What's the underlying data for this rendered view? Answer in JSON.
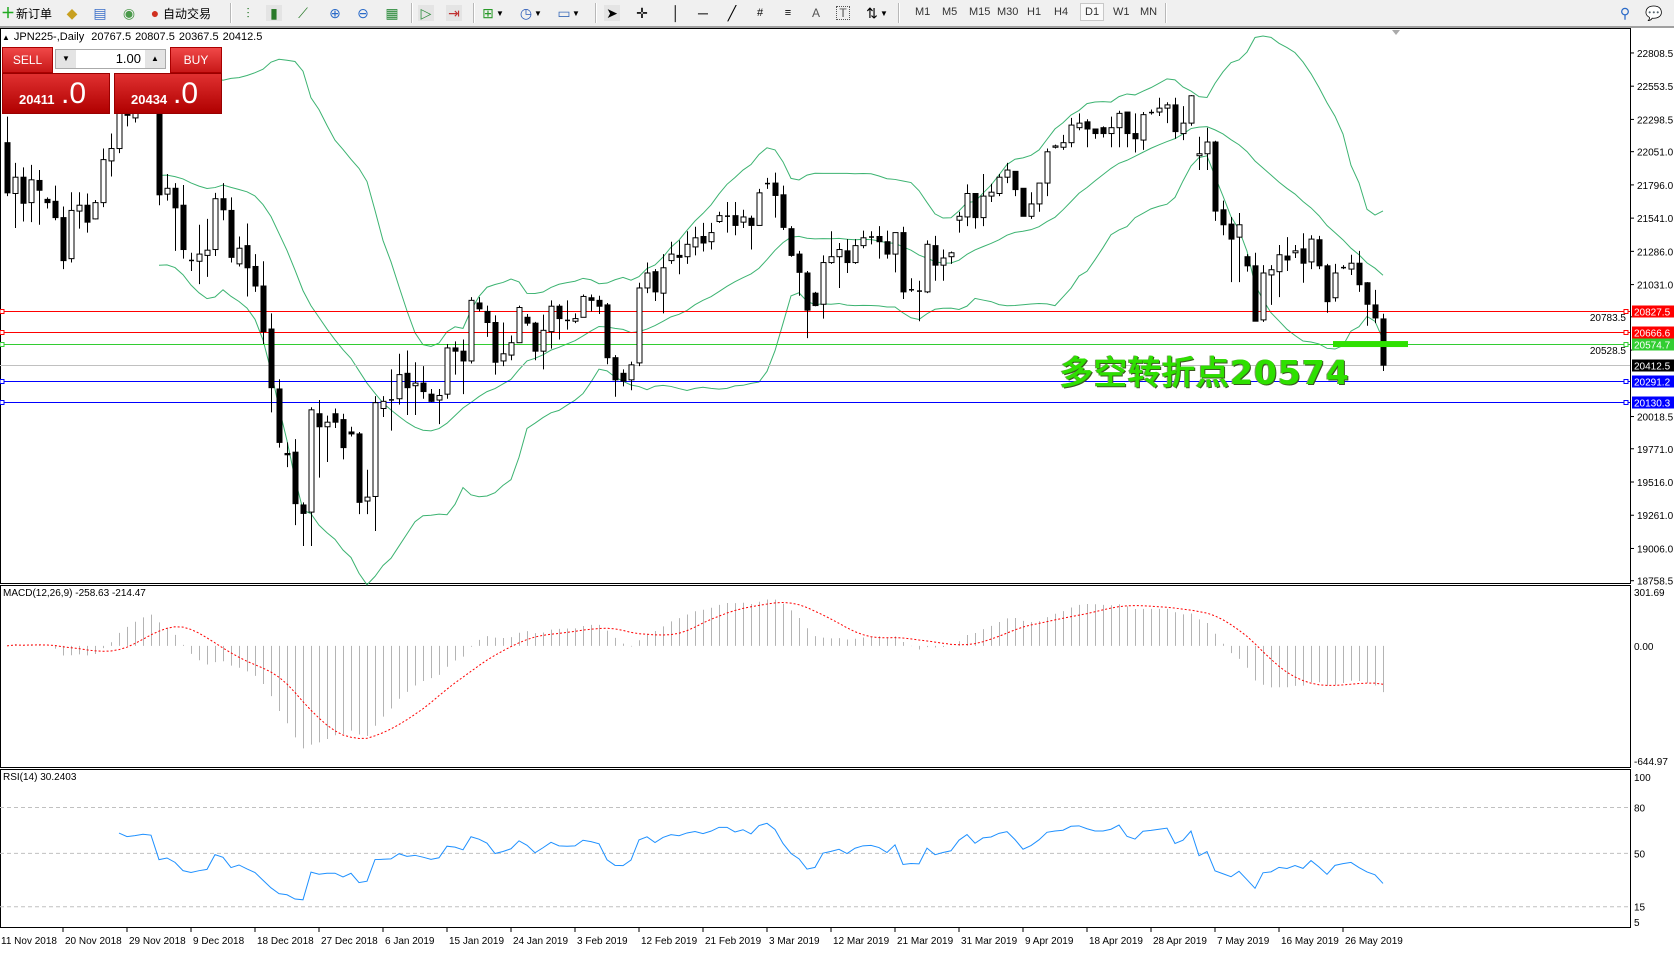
{
  "toolbar": {
    "new_order_label": "新订单",
    "auto_trading_label": "自动交易",
    "timeframes": [
      "M1",
      "M5",
      "M15",
      "M30",
      "H1",
      "H4",
      "D1",
      "W1",
      "MN"
    ],
    "active_timeframe": "D1",
    "icons": [
      "new-order-icon",
      "market-watch-icon",
      "data-window-icon",
      "signals-icon",
      "auto-trading-icon",
      "bar-chart-icon",
      "candlestick-icon",
      "line-chart-icon",
      "zoom-in-icon",
      "zoom-out-icon",
      "tile-windows-icon",
      "autoscroll-icon",
      "chart-shift-icon",
      "new-chart-icon",
      "periods-icon",
      "templates-icon",
      "cursor-icon",
      "crosshair-icon",
      "vertical-line-icon",
      "horizontal-line-icon",
      "trendline-icon",
      "fibonacci-icon",
      "channel-icon",
      "text-icon",
      "text-label-icon",
      "arrows-icon",
      "search-icon",
      "chat-icon"
    ]
  },
  "chart_header": {
    "symbol": "JPN225-,Daily",
    "open": "20767.5",
    "high": "20807.5",
    "low": "20367.5",
    "close": "20412.5"
  },
  "one_click": {
    "sell_label": "SELL",
    "buy_label": "BUY",
    "lot": "1.00",
    "sell_main": "20411",
    "sell_frac": ".0",
    "buy_main": "20434",
    "buy_frac": ".0",
    "color": "#d42020"
  },
  "annotation": {
    "text": "多空转折点20574",
    "color": "#2ee000",
    "level": 20574.7
  },
  "chart_data": [
    {
      "type": "candlestick",
      "symbol": "JPN225-",
      "timeframe": "Daily",
      "ylim": [
        18741,
        23000
      ],
      "price_ticks": [
        "22808.5",
        "22553.5",
        "22298.5",
        "22051.0",
        "21796.0",
        "21541.0",
        "21286.0",
        "21031.0",
        "20783.5",
        "20528.5",
        "20018.5",
        "19771.0",
        "19516.0",
        "19261.0",
        "19006.0",
        "18758.5"
      ],
      "date_labels": [
        "11 Nov 2018",
        "20 Nov 2018",
        "29 Nov 2018",
        "9 Dec 2018",
        "18 Dec 2018",
        "27 Dec 2018",
        "6 Jan 2019",
        "15 Jan 2019",
        "24 Jan 2019",
        "3 Feb 2019",
        "12 Feb 2019",
        "21 Feb 2019",
        "3 Mar 2019",
        "12 Mar 2019",
        "21 Mar 2019",
        "31 Mar 2019",
        "9 Apr 2019",
        "18 Apr 2019",
        "28 Apr 2019",
        "7 May 2019",
        "16 May 2019",
        "26 May 2019"
      ],
      "horizontal_lines": [
        {
          "price": 20827.5,
          "label": "20827.5",
          "color": "#ff0000"
        },
        {
          "price": 20666.6,
          "label": "20666.6",
          "color": "#ff0000"
        },
        {
          "price": 20574.7,
          "label": "20574.7",
          "color": "#32cd32"
        },
        {
          "price": 20291.2,
          "label": "20291.2",
          "color": "#0000ff"
        },
        {
          "price": 20130.3,
          "label": "20130.3",
          "color": "#0000ff"
        }
      ],
      "bid_line": {
        "price": 20412.5,
        "label": "20412.5",
        "color": "#c0c0c0"
      },
      "bands_color": "#3cb371",
      "up_color": "#ffffff",
      "down_color": "#000000",
      "ohlc": [
        [
          22120,
          22320,
          21710,
          21735
        ],
        [
          21730,
          21965,
          21465,
          21855
        ],
        [
          21855,
          21930,
          21515,
          21655
        ],
        [
          21660,
          21950,
          21510,
          21835
        ],
        [
          21830,
          21910,
          21490,
          21755
        ],
        [
          21685,
          21700,
          21615,
          21660
        ],
        [
          21670,
          21790,
          21525,
          21545
        ],
        [
          21545,
          21630,
          21150,
          21215
        ],
        [
          21230,
          21740,
          21200,
          21600
        ],
        [
          21595,
          21740,
          21460,
          21640
        ],
        [
          21640,
          21730,
          21430,
          21510
        ],
        [
          21535,
          21680,
          21530,
          21660
        ],
        [
          21660,
          22075,
          21625,
          21990
        ],
        [
          21980,
          22190,
          21860,
          22075
        ],
        [
          22075,
          22510,
          22040,
          22420
        ],
        [
          22370,
          22460,
          22245,
          22330
        ],
        [
          22310,
          22440,
          22275,
          22370
        ],
        [
          22370,
          22480,
          22350,
          22420
        ],
        [
          22420,
          22460,
          22370,
          22400
        ],
        [
          22400,
          22460,
          21640,
          21720
        ],
        [
          21725,
          21880,
          21675,
          21770
        ],
        [
          21770,
          21810,
          21290,
          21620
        ],
        [
          21640,
          21795,
          21230,
          21300
        ],
        [
          21220,
          21275,
          21135,
          21220
        ],
        [
          21210,
          21490,
          21035,
          21265
        ],
        [
          21255,
          21535,
          21090,
          21295
        ],
        [
          21300,
          21735,
          21250,
          21690
        ],
        [
          21690,
          21810,
          21525,
          21605
        ],
        [
          21600,
          21700,
          21200,
          21240
        ],
        [
          21190,
          21400,
          21170,
          21310
        ],
        [
          21330,
          21500,
          20940,
          21160
        ],
        [
          21170,
          21265,
          20975,
          21020
        ],
        [
          21020,
          21210,
          20575,
          20670
        ],
        [
          20690,
          20810,
          20050,
          20240
        ],
        [
          20230,
          20305,
          19780,
          19820
        ],
        [
          19735,
          19820,
          19630,
          19725
        ],
        [
          19745,
          19845,
          19185,
          19350
        ],
        [
          19340,
          19360,
          19025,
          19275
        ],
        [
          19285,
          20090,
          19025,
          20070
        ],
        [
          20040,
          20145,
          19550,
          19940
        ],
        [
          19940,
          20025,
          19670,
          19975
        ],
        [
          20040,
          20080,
          19930,
          19975
        ],
        [
          19995,
          20040,
          19690,
          19780
        ],
        [
          19900,
          19940,
          19865,
          19885
        ],
        [
          19885,
          19900,
          19270,
          19360
        ],
        [
          19370,
          19610,
          19270,
          19400
        ],
        [
          19405,
          20175,
          19140,
          20125
        ],
        [
          20080,
          20175,
          20015,
          20135
        ],
        [
          20145,
          20380,
          19910,
          20150
        ],
        [
          20155,
          20500,
          20110,
          20340
        ],
        [
          20350,
          20525,
          20030,
          20240
        ],
        [
          20255,
          20435,
          20030,
          20275
        ],
        [
          20275,
          20405,
          20155,
          20210
        ],
        [
          20190,
          20230,
          20130,
          20135
        ],
        [
          20145,
          20230,
          19960,
          20180
        ],
        [
          20190,
          20575,
          20155,
          20545
        ],
        [
          20545,
          20595,
          20340,
          20520
        ],
        [
          20520,
          20610,
          20190,
          20445
        ],
        [
          20445,
          20935,
          20425,
          20910
        ],
        [
          20890,
          20935,
          20825,
          20845
        ],
        [
          20825,
          20870,
          20630,
          20740
        ],
        [
          20740,
          20795,
          20340,
          20435
        ],
        [
          20445,
          20740,
          20405,
          20500
        ],
        [
          20490,
          20640,
          20450,
          20585
        ],
        [
          20585,
          20870,
          20585,
          20855
        ],
        [
          20780,
          20805,
          20715,
          20735
        ],
        [
          20735,
          20745,
          20450,
          20520
        ],
        [
          20520,
          20800,
          20380,
          20680
        ],
        [
          20670,
          20910,
          20540,
          20865
        ],
        [
          20865,
          20880,
          20610,
          20770
        ],
        [
          20760,
          20910,
          20685,
          20760
        ],
        [
          20750,
          20810,
          20735,
          20770
        ],
        [
          20780,
          20955,
          20780,
          20940
        ],
        [
          20930,
          20955,
          20825,
          20910
        ],
        [
          20910,
          20945,
          20805,
          20865
        ],
        [
          20875,
          20890,
          20420,
          20470
        ],
        [
          20470,
          20490,
          20170,
          20300
        ],
        [
          20350,
          20380,
          20250,
          20290
        ],
        [
          20300,
          20440,
          20220,
          20415
        ],
        [
          20430,
          21045,
          20405,
          21005
        ],
        [
          21005,
          21200,
          20965,
          21120
        ],
        [
          21130,
          21150,
          20905,
          20975
        ],
        [
          20965,
          21265,
          20810,
          21160
        ],
        [
          21215,
          21360,
          21190,
          21265
        ],
        [
          21255,
          21370,
          21110,
          21240
        ],
        [
          21245,
          21440,
          21190,
          21340
        ],
        [
          21320,
          21475,
          21255,
          21390
        ],
        [
          21400,
          21505,
          21285,
          21350
        ],
        [
          21360,
          21505,
          21300,
          21430
        ],
        [
          21515,
          21590,
          21505,
          21560
        ],
        [
          21560,
          21665,
          21430,
          21560
        ],
        [
          21560,
          21665,
          21410,
          21485
        ],
        [
          21510,
          21605,
          21465,
          21550
        ],
        [
          21540,
          21560,
          21300,
          21485
        ],
        [
          21485,
          21765,
          21485,
          21735
        ],
        [
          21810,
          21850,
          21765,
          21810
        ],
        [
          21810,
          21890,
          21545,
          21715
        ],
        [
          21720,
          21790,
          21450,
          21470
        ],
        [
          21460,
          21480,
          21245,
          21255
        ],
        [
          21265,
          21290,
          20945,
          21125
        ],
        [
          21120,
          21135,
          20620,
          20835
        ],
        [
          20965,
          20975,
          20865,
          20870
        ],
        [
          20880,
          21255,
          20770,
          21200
        ],
        [
          21200,
          21440,
          21190,
          21245
        ],
        [
          21245,
          21350,
          21005,
          21300
        ],
        [
          21290,
          21380,
          21120,
          21200
        ],
        [
          21200,
          21380,
          21190,
          21330
        ],
        [
          21330,
          21445,
          21310,
          21390
        ],
        [
          21400,
          21440,
          21340,
          21400
        ],
        [
          21400,
          21480,
          21230,
          21360
        ],
        [
          21360,
          21445,
          21230,
          21265
        ],
        [
          21265,
          21430,
          21125,
          21430
        ],
        [
          21430,
          21475,
          20920,
          20975
        ],
        [
          20995,
          21080,
          20975,
          20995
        ],
        [
          20985,
          21060,
          20750,
          20985
        ],
        [
          20975,
          21370,
          20965,
          21340
        ],
        [
          21330,
          21405,
          21060,
          21180
        ],
        [
          21180,
          21300,
          21060,
          21235
        ],
        [
          21245,
          21285,
          21190,
          21275
        ],
        [
          21525,
          21590,
          21430,
          21555
        ],
        [
          21550,
          21800,
          21480,
          21730
        ],
        [
          21730,
          21730,
          21460,
          21545
        ],
        [
          21545,
          21880,
          21480,
          21710
        ],
        [
          21710,
          21805,
          21665,
          21740
        ],
        [
          21730,
          21880,
          21710,
          21855
        ],
        [
          21855,
          21965,
          21810,
          21910
        ],
        [
          21900,
          21900,
          21710,
          21760
        ],
        [
          21770,
          21770,
          21555,
          21555
        ],
        [
          21555,
          21740,
          21535,
          21650
        ],
        [
          21650,
          21810,
          21590,
          21810
        ],
        [
          21810,
          22075,
          21710,
          22050
        ],
        [
          22085,
          22105,
          22075,
          22095
        ],
        [
          22085,
          22180,
          22065,
          22120
        ],
        [
          22120,
          22310,
          22085,
          22255
        ],
        [
          22235,
          22345,
          22215,
          22270
        ],
        [
          22280,
          22300,
          22085,
          22225
        ],
        [
          22225,
          22225,
          22150,
          22190
        ],
        [
          22235,
          22245,
          22160,
          22190
        ],
        [
          22190,
          22320,
          22085,
          22235
        ],
        [
          22235,
          22365,
          22085,
          22345
        ],
        [
          22355,
          22355,
          22085,
          22190
        ],
        [
          22190,
          22345,
          22045,
          22150
        ],
        [
          22140,
          22355,
          22065,
          22335
        ],
        [
          22355,
          22375,
          22335,
          22355
        ],
        [
          22355,
          22465,
          22325,
          22385
        ],
        [
          22385,
          22430,
          22270,
          22410
        ],
        [
          22410,
          22465,
          22150,
          22205
        ],
        [
          22190,
          22400,
          22140,
          22270
        ],
        [
          22270,
          22485,
          22250,
          22480
        ],
        [
          22020,
          22165,
          21910,
          22035
        ],
        [
          22035,
          22235,
          21910,
          22125
        ],
        [
          22125,
          22135,
          21520,
          21595
        ],
        [
          21605,
          21675,
          21410,
          21490
        ],
        [
          21495,
          21550,
          21050,
          21380
        ],
        [
          21395,
          21580,
          21050,
          21490
        ],
        [
          21245,
          21265,
          21130,
          21175
        ],
        [
          21175,
          21275,
          20750,
          20750
        ],
        [
          20760,
          21180,
          20745,
          21120
        ],
        [
          21105,
          21180,
          20875,
          21145
        ],
        [
          21130,
          21335,
          20935,
          21260
        ],
        [
          21250,
          21395,
          21135,
          21220
        ],
        [
          21275,
          21335,
          21235,
          21290
        ],
        [
          21305,
          21425,
          21045,
          21195
        ],
        [
          21205,
          21410,
          21150,
          21380
        ],
        [
          21375,
          21405,
          21150,
          21175
        ],
        [
          21175,
          21190,
          20815,
          20900
        ],
        [
          20930,
          21190,
          20900,
          21120
        ],
        [
          21165,
          21180,
          21150,
          21165
        ],
        [
          21150,
          21260,
          21105,
          21195
        ],
        [
          21195,
          21290,
          20975,
          21030
        ],
        [
          21045,
          21050,
          20715,
          20880
        ],
        [
          20875,
          20990,
          20735,
          20775
        ],
        [
          20767.5,
          20807.5,
          20367.5,
          20412.5
        ]
      ]
    },
    {
      "type": "bar",
      "title": "MACD(12,26,9)",
      "main_value": "-258.63",
      "signal_value": "-214.47",
      "ylim": [
        -644.97,
        301.69
      ],
      "ticks": [
        "301.69",
        "0.00",
        "-644.97"
      ],
      "histogram_color": "#b4b4b4",
      "signal_color": "#ff0000"
    },
    {
      "type": "line",
      "title": "RSI(14)",
      "value": "30.2403",
      "ylim": [
        5,
        100
      ],
      "ticks": [
        "100",
        "80",
        "50",
        "15",
        "5"
      ],
      "levels": [
        80,
        50,
        15
      ],
      "line_color": "#1e90ff"
    }
  ]
}
